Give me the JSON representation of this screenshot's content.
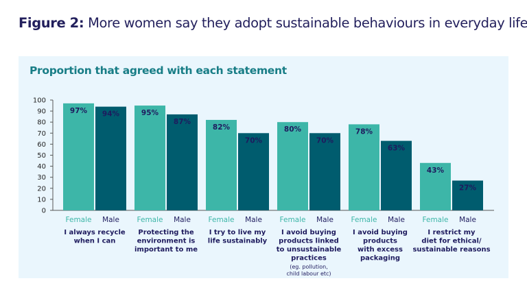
{
  "figure_label": "Figure 2:",
  "figure_title": "More women say they adopt sustainable behaviours in everyday life",
  "chart_data": {
    "type": "bar",
    "title": "Proportion that agreed with each statement",
    "ylim": [
      0,
      100
    ],
    "yticks": [
      0,
      10,
      20,
      30,
      40,
      50,
      60,
      70,
      80,
      90,
      100
    ],
    "grid": false,
    "categories": [
      {
        "lines": [
          "I always recycle",
          "when I can"
        ],
        "note": []
      },
      {
        "lines": [
          "Protecting the",
          "environment is",
          "important to me"
        ],
        "note": []
      },
      {
        "lines": [
          "I try to live my",
          "life sustainably"
        ],
        "note": []
      },
      {
        "lines": [
          "I avoid buying",
          "products linked",
          "to unsustainable",
          "practices"
        ],
        "note": [
          "(eg. pollution,",
          "child labour etc)"
        ]
      },
      {
        "lines": [
          "I avoid buying",
          "products",
          "with excess",
          "packaging"
        ],
        "note": []
      },
      {
        "lines": [
          "I restrict my",
          "diet for ethical/",
          "sustainable reasons"
        ],
        "note": []
      }
    ],
    "series": [
      {
        "name": "Female",
        "color": "#3db6a8",
        "values": [
          97,
          95,
          82,
          80,
          78,
          43
        ]
      },
      {
        "name": "Male",
        "color": "#005c6e",
        "values": [
          94,
          87,
          70,
          70,
          63,
          27
        ]
      }
    ],
    "value_suffix": "%"
  }
}
